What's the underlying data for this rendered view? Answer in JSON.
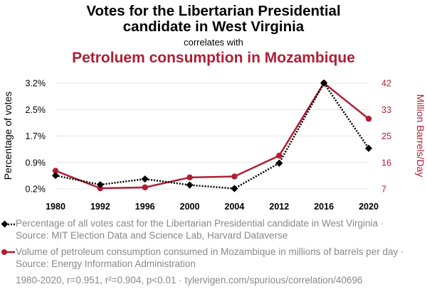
{
  "title_line1": "Votes for the Libertarian Presidential",
  "title_line2": "candidate in West Virginia",
  "correlates": "correlates with",
  "title_line3": "Petroluem consumption in Mozambique",
  "colors": {
    "series1": "#000000",
    "series2": "#b01e34",
    "legend_text": "#888888"
  },
  "chart_data": {
    "type": "line",
    "categories": [
      "1980",
      "1992",
      "1996",
      "2000",
      "2004",
      "2012",
      "2016",
      "2020"
    ],
    "series": [
      {
        "name": "Percentage of all votes cast for the Libertarian Presidential candidate in West Virginia",
        "axis": "left",
        "values": [
          0.58,
          0.32,
          0.48,
          0.31,
          0.21,
          0.93,
          3.2,
          1.35
        ]
      },
      {
        "name": "Volume of petroleum consumption consumed in Mozambique in millions of barrels per day",
        "axis": "right",
        "values": [
          13.0,
          7.2,
          7.5,
          10.8,
          11.1,
          18.0,
          42.0,
          30.2
        ]
      }
    ],
    "left_axis": {
      "label": "Percentage of votes",
      "ticks": [
        "0.2%",
        "0.9%",
        "1.7%",
        "2.5%",
        "3.2%"
      ],
      "tick_values": [
        0.2,
        0.95,
        1.7,
        2.45,
        3.2
      ],
      "range": [
        0.2,
        3.2
      ]
    },
    "right_axis": {
      "label": "Million Barrels/Day",
      "ticks": [
        "7",
        "16",
        "25",
        "33",
        "42"
      ],
      "tick_values": [
        7,
        15.75,
        24.5,
        33.25,
        42
      ],
      "range": [
        7,
        42
      ]
    }
  },
  "legend": {
    "item1": "Percentage of all votes cast for the Libertarian Presidential candidate in West Virginia · Source: MIT Election Data and Science Lab, Harvard Dataverse",
    "item2": "Volume of petroleum consumption consumed in Mozambique in millions of barrels per day · Source: Energy Information Administration"
  },
  "footer": "1980-2020, r=0.951, r²=0.904, p<0.01 · tylervigen.com/spurious/correlation/40696"
}
